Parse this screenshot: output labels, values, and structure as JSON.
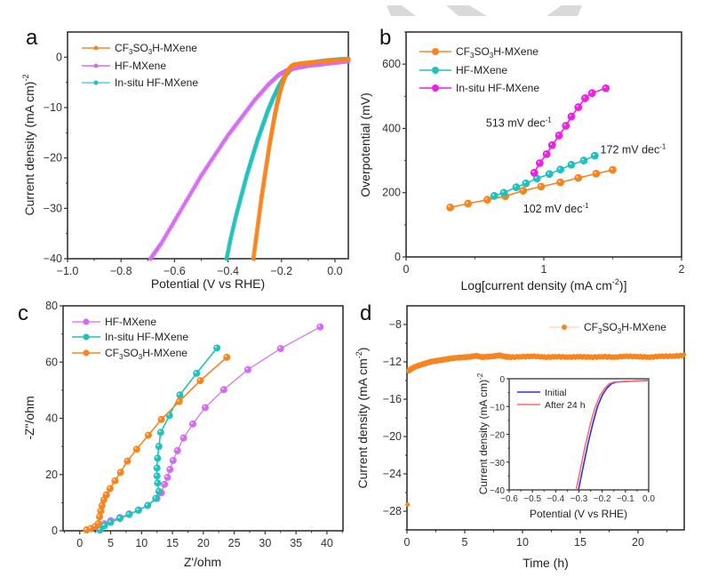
{
  "colors": {
    "orange": "#f7851f",
    "violet": "#d46cf2",
    "teal": "#21c1be",
    "magenta": "#f01fe6",
    "blue": "#2a2aff",
    "red": "#ff6a6a",
    "watermark": "#d9d9d9"
  },
  "chart_data": [
    {
      "panel": "a",
      "type": "line",
      "xlabel": "Potential (V vs RHE)",
      "ylabel": "Current density (mA cm)-2",
      "xlim": [
        -1.0,
        0.05
      ],
      "ylim": [
        -40,
        5
      ],
      "xticks": [
        -1.0,
        -0.8,
        -0.6,
        -0.4,
        -0.2,
        0.0
      ],
      "xtick_labels": [
        "−1.0",
        "−0.8",
        "−0.6",
        "−0.4",
        "−0.2",
        "0.0"
      ],
      "yticks": [
        0,
        -10,
        -20,
        -30,
        -40
      ],
      "ytick_labels": [
        "0",
        "−10",
        "−20",
        "−30",
        "−40"
      ],
      "legend_position": "top-left",
      "series": [
        {
          "name": "CF3SO3H-MXene",
          "color_key": "orange",
          "x": [
            -0.305,
            -0.295,
            -0.285,
            -0.275,
            -0.265,
            -0.255,
            -0.245,
            -0.235,
            -0.225,
            -0.215,
            -0.205,
            -0.195,
            -0.185,
            -0.175,
            -0.165,
            -0.155,
            -0.12,
            -0.08,
            -0.04,
            0.0,
            0.05
          ],
          "y": [
            -40,
            -36,
            -32,
            -28,
            -24.5,
            -21,
            -17.5,
            -14.5,
            -11.5,
            -9,
            -6.8,
            -5,
            -3.6,
            -2.6,
            -1.9,
            -1.5,
            -1.2,
            -1.0,
            -0.8,
            -0.6,
            -0.4
          ]
        },
        {
          "name": "HF-MXene",
          "color_key": "violet",
          "x": [
            -0.69,
            -0.65,
            -0.6,
            -0.55,
            -0.5,
            -0.45,
            -0.4,
            -0.35,
            -0.3,
            -0.25,
            -0.21,
            -0.18,
            -0.15,
            -0.1,
            -0.05,
            0.0,
            0.05
          ],
          "y": [
            -40,
            -37,
            -32.5,
            -28,
            -23.5,
            -19.5,
            -15.5,
            -12,
            -8.5,
            -5.5,
            -3.5,
            -2.6,
            -2.2,
            -1.7,
            -1.4,
            -1.1,
            -0.8
          ]
        },
        {
          "name": "In-situ HF-MXene",
          "color_key": "teal",
          "x": [
            -0.405,
            -0.39,
            -0.37,
            -0.35,
            -0.33,
            -0.31,
            -0.29,
            -0.27,
            -0.25,
            -0.23,
            -0.21,
            -0.19,
            -0.17,
            -0.15,
            -0.12,
            -0.08,
            -0.04,
            0.0,
            0.05
          ],
          "y": [
            -40,
            -36,
            -31.5,
            -27.5,
            -23.5,
            -20,
            -16.5,
            -13.5,
            -10.5,
            -8,
            -5.8,
            -4,
            -2.7,
            -1.7,
            -1.3,
            -1.0,
            -0.7,
            -0.5,
            -0.3
          ]
        }
      ]
    },
    {
      "panel": "b",
      "type": "line",
      "xlabel": "Log[current density (mA cm-2)]",
      "ylabel": "Overpotential (mV)",
      "xlim": [
        0,
        2
      ],
      "ylim": [
        0,
        700
      ],
      "xticks": [
        0,
        1,
        2
      ],
      "xtick_labels": [
        "0",
        "1",
        "2"
      ],
      "yticks": [
        0,
        200,
        400,
        600
      ],
      "ytick_labels": [
        "0",
        "200",
        "400",
        "600"
      ],
      "legend_position": "top-left",
      "annotations": [
        {
          "text": "513 mV dec",
          "sup": "-1",
          "x": 0.58,
          "y": 405
        },
        {
          "text": "172 mV dec",
          "sup": "-1",
          "x": 1.41,
          "y": 322
        },
        {
          "text": "102 mV dec",
          "sup": "-1",
          "x": 0.85,
          "y": 138
        }
      ],
      "series": [
        {
          "name": "CF3SO3H-MXene",
          "color_key": "orange",
          "x": [
            0.32,
            0.45,
            0.59,
            0.72,
            0.85,
            0.98,
            1.12,
            1.25,
            1.38,
            1.5
          ],
          "y": [
            154,
            166,
            178,
            189,
            206,
            219,
            232,
            246,
            259,
            271
          ]
        },
        {
          "name": "HF-MXene",
          "color_key": "teal",
          "x": [
            0.64,
            0.71,
            0.8,
            0.87,
            0.95,
            1.04,
            1.12,
            1.2,
            1.29,
            1.37
          ],
          "y": [
            190,
            200,
            217,
            229,
            244,
            258,
            272,
            287,
            300,
            315
          ]
        },
        {
          "name": "In-situ HF-MXene",
          "color_key": "magenta",
          "x": [
            0.93,
            0.97,
            1.02,
            1.06,
            1.11,
            1.16,
            1.2,
            1.25,
            1.3,
            1.35,
            1.45
          ],
          "y": [
            262,
            292,
            320,
            348,
            378,
            408,
            437,
            466,
            494,
            510,
            525
          ]
        }
      ]
    },
    {
      "panel": "c",
      "type": "scatter",
      "xlabel": "Z'/ohm",
      "ylabel": "-Z\"/ohm",
      "xlim": [
        -2.7,
        42.6
      ],
      "ylim": [
        0,
        80
      ],
      "xticks": [
        0,
        5,
        10,
        15,
        20,
        25,
        30,
        35,
        40
      ],
      "xtick_labels": [
        "0",
        "5",
        "10",
        "15",
        "20",
        "25",
        "30",
        "35",
        "40"
      ],
      "yticks": [
        0,
        20,
        40,
        60,
        80
      ],
      "ytick_labels": [
        "0",
        "20",
        "40",
        "60",
        "80"
      ],
      "legend_position": "top-left",
      "series": [
        {
          "name": "HF-MXene",
          "color_key": "violet",
          "x": [
            3.2,
            4.0,
            5.0,
            6.5,
            8.0,
            9.5,
            11.0,
            12.5,
            13.2,
            13.7,
            14.2,
            14.6,
            15.1,
            15.8,
            16.8,
            18.3,
            20.3,
            23.3,
            27.2,
            32.5,
            38.9
          ],
          "y": [
            0.3,
            2.5,
            3.6,
            4.7,
            6.0,
            7.4,
            9.0,
            11.5,
            13.5,
            16.5,
            19.0,
            21.8,
            25.0,
            28.5,
            33.0,
            38.0,
            43.8,
            50.2,
            57.3,
            64.8,
            72.5
          ]
        },
        {
          "name": "In-situ HF-MXene",
          "color_key": "teal",
          "x": [
            3.3,
            4.0,
            5.0,
            6.5,
            8.0,
            9.5,
            11.0,
            12.3,
            12.8,
            12.6,
            12.5,
            12.5,
            12.6,
            12.8,
            13.1,
            14.5,
            16.2,
            18.9,
            22.2
          ],
          "y": [
            0.3,
            1.8,
            3.0,
            4.4,
            5.8,
            7.3,
            9.0,
            11.5,
            14.0,
            17.0,
            19.5,
            22.3,
            25.8,
            30.0,
            35.0,
            41.0,
            48.3,
            56.0,
            65.0
          ]
        },
        {
          "name": "CF3SO3H-MXene",
          "color_key": "orange",
          "x": [
            1.1,
            1.8,
            2.5,
            3.0,
            3.2,
            3.4,
            3.6,
            3.9,
            4.3,
            4.9,
            5.7,
            6.6,
            7.7,
            9.2,
            11.1,
            13.2,
            16.1,
            19.5,
            23.8
          ],
          "y": [
            0.3,
            0.8,
            1.5,
            2.5,
            5.0,
            7.0,
            9.0,
            11.0,
            12.8,
            15.0,
            17.8,
            20.8,
            24.8,
            29.0,
            34.0,
            39.6,
            46.0,
            53.4,
            61.7
          ]
        }
      ]
    },
    {
      "panel": "d",
      "type": "line",
      "xlabel": "Time (h)",
      "ylabel": "Current density (mA cm-2)",
      "xlim": [
        0,
        24
      ],
      "ylim": [
        -30,
        -6
      ],
      "xticks": [
        0,
        5,
        10,
        15,
        20
      ],
      "xtick_labels": [
        "0",
        "5",
        "10",
        "15",
        "20"
      ],
      "yticks": [
        -8,
        -12,
        -16,
        -20,
        -24,
        -28
      ],
      "ytick_labels": [
        "−8",
        "−12",
        "−16",
        "−20",
        "−24",
        "−28"
      ],
      "legend_position": "top-right",
      "series": [
        {
          "name": "CF3SO3H-MXene",
          "color_key": "orange",
          "x": [
            0.05,
            0.1,
            0.3,
            0.6,
            1.0,
            1.5,
            2.0,
            2.5,
            3.0,
            3.5,
            4.0,
            4.5,
            5.0,
            5.5,
            6.0,
            6.5,
            7.0,
            7.5,
            8.0,
            8.5,
            9.0,
            10,
            11,
            12,
            13,
            14,
            15,
            16,
            17,
            18,
            19,
            20,
            21,
            22,
            23,
            24
          ],
          "y": [
            -27.3,
            -13.0,
            -12.8,
            -12.6,
            -12.4,
            -12.2,
            -12.0,
            -11.9,
            -11.8,
            -11.7,
            -11.6,
            -11.55,
            -11.5,
            -11.45,
            -11.35,
            -11.5,
            -11.45,
            -11.4,
            -11.3,
            -11.45,
            -11.5,
            -11.45,
            -11.4,
            -11.5,
            -11.45,
            -11.5,
            -11.45,
            -11.5,
            -11.45,
            -11.5,
            -11.4,
            -11.45,
            -11.5,
            -11.4,
            -11.4,
            -11.3
          ]
        }
      ],
      "inset": {
        "type": "line",
        "xlabel": "Potential (V vs RHE)",
        "ylabel": "Current density (mA cm)-2",
        "xlim": [
          -0.6,
          0.0
        ],
        "ylim": [
          -40,
          0
        ],
        "xticks": [
          -0.6,
          -0.5,
          -0.4,
          -0.3,
          -0.2,
          -0.1,
          0.0
        ],
        "xtick_labels": [
          "−0.6",
          "−0.5",
          "−0.4",
          "−0.3",
          "−0.2",
          "−0.1",
          "0.0"
        ],
        "yticks": [
          0,
          -10,
          -20,
          -30,
          -40
        ],
        "ytick_labels": [
          "0",
          "−10",
          "−20",
          "−30",
          "−40"
        ],
        "legend_position": "top-left",
        "series": [
          {
            "name": "Initial",
            "color_key": "blue",
            "x": [
              -0.302,
              -0.28,
              -0.26,
              -0.24,
              -0.22,
              -0.2,
              -0.18,
              -0.16,
              -0.14,
              -0.1,
              -0.05,
              0.0
            ],
            "y": [
              -40,
              -31,
              -23,
              -16,
              -10,
              -6,
              -3.4,
              -1.8,
              -1.2,
              -1.0,
              -0.8,
              -0.6
            ]
          },
          {
            "name": "After 24 h",
            "color_key": "red",
            "x": [
              -0.312,
              -0.29,
              -0.27,
              -0.25,
              -0.23,
              -0.21,
              -0.19,
              -0.17,
              -0.15,
              -0.12,
              -0.06,
              0.0
            ],
            "y": [
              -40,
              -31,
              -23,
              -16,
              -10.2,
              -6.2,
              -3.5,
              -1.8,
              -1.2,
              -1.0,
              -0.8,
              -0.6
            ]
          }
        ]
      }
    }
  ],
  "panels": {
    "a": {
      "label": "a",
      "ylabel_main": "Current density (mA cm)",
      "ylabel_sup": "-2",
      "xlabel": "Potential (V vs RHE)",
      "legend": [
        {
          "pre": "CF",
          "sub1": "3",
          "mid": "SO",
          "sub2": "3",
          "post": "H-MXene"
        },
        {
          "text": "HF-MXene"
        },
        {
          "text": "In-situ HF-MXene"
        }
      ]
    },
    "b": {
      "label": "b",
      "ylabel": "Overpotential (mV)",
      "xlabel_main": "Log[current density (mA cm",
      "xlabel_sup": "-2",
      "xlabel_end": ")]",
      "legend": [
        {
          "pre": "CF",
          "sub1": "3",
          "mid": "SO",
          "sub2": "3",
          "post": "H-MXene"
        },
        {
          "text": "HF-MXene"
        },
        {
          "text": "In-situ HF-MXene"
        }
      ]
    },
    "c": {
      "label": "c",
      "ylabel": "-Z\"/ohm",
      "xlabel": "Z'/ohm",
      "legend": [
        {
          "text": "HF-MXene"
        },
        {
          "text": "In-situ HF-MXene"
        },
        {
          "pre": "CF",
          "sub1": "3",
          "mid": "SO",
          "sub2": "3",
          "post": "H-MXene"
        }
      ]
    },
    "d": {
      "label": "d",
      "ylabel_main": "Current density (mA cm",
      "ylabel_sup": "-2",
      "ylabel_end": ")",
      "xlabel": "Time (h)",
      "legend": [
        {
          "pre": "CF",
          "sub1": "3",
          "mid": "SO",
          "sub2": "3",
          "post": "H-MXene"
        }
      ],
      "inset": {
        "ylabel_main": "Current density (mA cm)",
        "ylabel_sup": "-2",
        "xlabel": "Potential (V vs RHE)",
        "legend": [
          {
            "text": "Initial"
          },
          {
            "text": "After 24 h"
          }
        ]
      }
    }
  }
}
